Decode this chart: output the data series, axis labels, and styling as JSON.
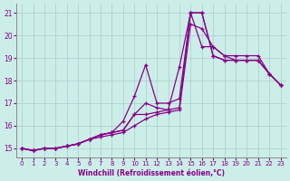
{
  "xlabel": "Windchill (Refroidissement éolien,°C)",
  "bg_color": "#cceee8",
  "grid_color": "#aacccc",
  "line_color": "#880088",
  "xlim": [
    -0.5,
    23.5
  ],
  "ylim": [
    14.6,
    21.4
  ],
  "xticks": [
    0,
    1,
    2,
    3,
    4,
    5,
    6,
    7,
    8,
    9,
    10,
    11,
    12,
    13,
    14,
    15,
    16,
    17,
    18,
    19,
    20,
    21,
    22,
    23
  ],
  "yticks": [
    15,
    16,
    17,
    18,
    19,
    20,
    21
  ],
  "series": [
    [
      15.0,
      14.9,
      15.0,
      15.0,
      15.1,
      15.2,
      15.4,
      15.5,
      15.6,
      15.7,
      16.0,
      16.3,
      16.5,
      16.6,
      16.7,
      20.5,
      20.3,
      19.5,
      19.1,
      18.9,
      18.9,
      18.9,
      18.3,
      17.8
    ],
    [
      15.0,
      14.9,
      15.0,
      15.0,
      15.1,
      15.2,
      15.4,
      15.6,
      15.7,
      15.8,
      16.5,
      17.0,
      16.8,
      16.7,
      18.6,
      21.0,
      21.0,
      19.1,
      18.9,
      18.9,
      18.9,
      18.9,
      18.3,
      17.8
    ],
    [
      15.0,
      14.9,
      15.0,
      15.0,
      15.1,
      15.2,
      15.4,
      15.6,
      15.7,
      16.2,
      17.3,
      18.7,
      17.0,
      17.0,
      17.2,
      21.0,
      19.5,
      19.5,
      19.1,
      19.1,
      19.1,
      19.1,
      18.3,
      17.8
    ],
    [
      15.0,
      14.9,
      15.0,
      15.0,
      15.1,
      15.2,
      15.4,
      15.6,
      15.7,
      15.8,
      16.5,
      16.5,
      16.6,
      16.7,
      16.8,
      21.0,
      21.0,
      19.1,
      18.9,
      18.9,
      18.9,
      18.9,
      18.3,
      17.8
    ]
  ]
}
